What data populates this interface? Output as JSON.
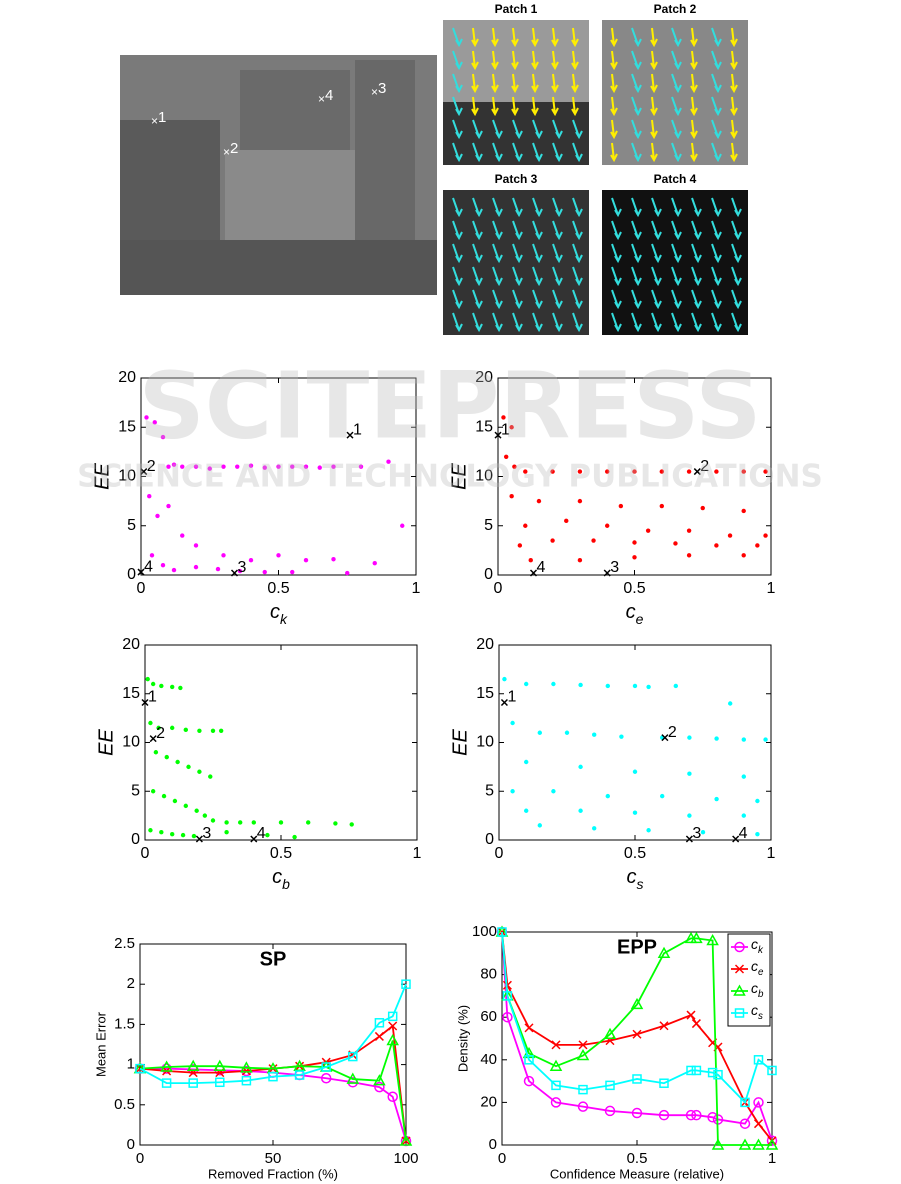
{
  "image_panel": {
    "points": [
      "1",
      "2",
      "3",
      "4"
    ],
    "patch_titles": [
      "Patch 1",
      "Patch 2",
      "Patch 3",
      "Patch 4"
    ]
  },
  "watermark": {
    "title": "SCITEPRESS",
    "subtitle": "SCIENCE AND TECHNOLOGY PUBLICATIONS"
  },
  "chart_data": [
    {
      "type": "scatter",
      "xlabel": {
        "text": "c",
        "sub": "k"
      },
      "ylabel": "EE",
      "color": "#ff00ff",
      "xlim": [
        0,
        1
      ],
      "xticks": [
        0,
        0.5,
        1
      ],
      "ylim": [
        0,
        20
      ],
      "yticks": [
        0,
        5,
        10,
        15,
        20
      ],
      "x": [
        0.02,
        0.05,
        0.08,
        0.1,
        0.12,
        0.15,
        0.2,
        0.25,
        0.3,
        0.35,
        0.4,
        0.45,
        0.5,
        0.55,
        0.6,
        0.65,
        0.7,
        0.8,
        0.9,
        0.95,
        0.03,
        0.06,
        0.1,
        0.15,
        0.2,
        0.3,
        0.4,
        0.5,
        0.6,
        0.7,
        0.85,
        0.04,
        0.08,
        0.12,
        0.2,
        0.28,
        0.36,
        0.45,
        0.55,
        0.75
      ],
      "values": [
        16,
        15.5,
        14,
        11,
        11.2,
        11,
        11,
        10.8,
        11,
        11,
        11.1,
        10.9,
        11,
        11,
        11,
        10.9,
        11,
        11,
        11.5,
        5,
        8,
        6,
        7,
        4,
        3,
        2,
        1.5,
        2,
        1.5,
        1.6,
        1.2,
        2,
        1,
        0.5,
        0.8,
        0.6,
        0.4,
        0.3,
        0.3,
        0.2
      ],
      "annotations": [
        {
          "label": "1",
          "x": 0.76,
          "y": 14.2
        },
        {
          "label": "2",
          "x": 0.01,
          "y": 10.5
        },
        {
          "label": "3",
          "x": 0.34,
          "y": 0.2
        },
        {
          "label": "4",
          "x": 0.0,
          "y": 0.3
        }
      ]
    },
    {
      "type": "scatter",
      "xlabel": {
        "text": "c",
        "sub": "e"
      },
      "ylabel": "EE",
      "color": "#ff0000",
      "xlim": [
        0,
        1
      ],
      "xticks": [
        0,
        0.5,
        1
      ],
      "ylim": [
        0,
        20
      ],
      "yticks": [
        0,
        5,
        10,
        15,
        20
      ],
      "x": [
        0.02,
        0.05,
        0.03,
        0.06,
        0.1,
        0.2,
        0.3,
        0.4,
        0.5,
        0.6,
        0.7,
        0.8,
        0.9,
        0.98,
        0.05,
        0.15,
        0.3,
        0.45,
        0.6,
        0.75,
        0.9,
        0.1,
        0.25,
        0.4,
        0.55,
        0.7,
        0.85,
        0.98,
        0.08,
        0.2,
        0.35,
        0.5,
        0.65,
        0.8,
        0.95,
        0.12,
        0.3,
        0.5,
        0.7,
        0.9
      ],
      "values": [
        16,
        15,
        12,
        11,
        10.5,
        10.5,
        10.5,
        10.5,
        10.5,
        10.5,
        10.5,
        10.5,
        10.5,
        10.5,
        8,
        7.5,
        7.5,
        7,
        7,
        6.8,
        6.5,
        5,
        5.5,
        5,
        4.5,
        4.5,
        4,
        4,
        3,
        3.5,
        3.5,
        3.3,
        3.2,
        3,
        3,
        1.5,
        1.5,
        1.8,
        2,
        2
      ],
      "annotations": [
        {
          "label": "1",
          "x": 0.0,
          "y": 14.2
        },
        {
          "label": "2",
          "x": 0.73,
          "y": 10.5
        },
        {
          "label": "3",
          "x": 0.4,
          "y": 0.2
        },
        {
          "label": "4",
          "x": 0.13,
          "y": 0.2
        }
      ]
    },
    {
      "type": "scatter",
      "xlabel": {
        "text": "c",
        "sub": "b"
      },
      "ylabel": "EE",
      "color": "#00ff00",
      "xlim": [
        0,
        1
      ],
      "xticks": [
        0,
        0.5,
        1
      ],
      "ylim": [
        0,
        20
      ],
      "yticks": [
        0,
        5,
        10,
        15,
        20
      ],
      "x": [
        0.01,
        0.03,
        0.06,
        0.1,
        0.13,
        0.02,
        0.05,
        0.1,
        0.15,
        0.2,
        0.25,
        0.28,
        0.04,
        0.08,
        0.12,
        0.16,
        0.2,
        0.24,
        0.03,
        0.07,
        0.11,
        0.15,
        0.19,
        0.22,
        0.25,
        0.3,
        0.35,
        0.4,
        0.5,
        0.6,
        0.7,
        0.76,
        0.02,
        0.06,
        0.1,
        0.14,
        0.18,
        0.3,
        0.45,
        0.55
      ],
      "values": [
        16.5,
        16,
        15.8,
        15.7,
        15.6,
        12,
        11.5,
        11.5,
        11.3,
        11.2,
        11.2,
        11.2,
        9,
        8.5,
        8,
        7.5,
        7,
        6.5,
        5,
        4.5,
        4,
        3.5,
        3,
        2.5,
        2,
        1.8,
        1.8,
        1.8,
        1.8,
        1.8,
        1.7,
        1.6,
        1,
        0.8,
        0.6,
        0.5,
        0.4,
        0.8,
        0.5,
        0.3
      ],
      "annotations": [
        {
          "label": "1",
          "x": 0.0,
          "y": 14.1
        },
        {
          "label": "2",
          "x": 0.03,
          "y": 10.4
        },
        {
          "label": "3",
          "x": 0.2,
          "y": 0.1
        },
        {
          "label": "4",
          "x": 0.4,
          "y": 0.1
        }
      ]
    },
    {
      "type": "scatter",
      "xlabel": {
        "text": "c",
        "sub": "s"
      },
      "ylabel": "EE",
      "color": "#00ffff",
      "xlim": [
        0,
        1
      ],
      "xticks": [
        0,
        0.5,
        1
      ],
      "ylim": [
        0,
        20
      ],
      "yticks": [
        0,
        5,
        10,
        15,
        20
      ],
      "x": [
        0.02,
        0.1,
        0.2,
        0.3,
        0.4,
        0.5,
        0.55,
        0.05,
        0.15,
        0.25,
        0.35,
        0.45,
        0.6,
        0.7,
        0.8,
        0.9,
        0.98,
        0.1,
        0.3,
        0.5,
        0.7,
        0.9,
        0.05,
        0.2,
        0.4,
        0.6,
        0.8,
        0.95,
        0.1,
        0.3,
        0.5,
        0.7,
        0.9,
        0.15,
        0.35,
        0.55,
        0.75,
        0.95,
        0.65,
        0.85
      ],
      "values": [
        16.5,
        16,
        16,
        15.9,
        15.8,
        15.8,
        15.7,
        12,
        11,
        11,
        10.8,
        10.6,
        10.5,
        10.5,
        10.4,
        10.3,
        10.3,
        8,
        7.5,
        7,
        6.8,
        6.5,
        5,
        5,
        4.5,
        4.5,
        4.2,
        4,
        3,
        3,
        2.8,
        2.5,
        2.5,
        1.5,
        1.2,
        1,
        0.8,
        0.6,
        15.8,
        14
      ],
      "annotations": [
        {
          "label": "1",
          "x": 0.02,
          "y": 14.1
        },
        {
          "label": "2",
          "x": 0.61,
          "y": 10.5
        },
        {
          "label": "3",
          "x": 0.7,
          "y": 0.1
        },
        {
          "label": "4",
          "x": 0.87,
          "y": 0.1
        }
      ]
    },
    {
      "type": "line",
      "title": "SP",
      "xlabel": "Removed Fraction (%)",
      "ylabel": "Mean Error",
      "xlim": [
        0,
        100
      ],
      "xticks": [
        0,
        50,
        100
      ],
      "ylim": [
        0,
        2.5
      ],
      "yticks": [
        0,
        0.5,
        1,
        1.5,
        2,
        2.5
      ],
      "x": [
        0,
        10,
        20,
        30,
        40,
        50,
        60,
        70,
        80,
        90,
        95,
        100
      ],
      "series": [
        {
          "color": "#ff00ff",
          "marker": "circle",
          "values": [
            0.95,
            0.95,
            0.94,
            0.93,
            0.92,
            0.9,
            0.87,
            0.83,
            0.78,
            0.72,
            0.6,
            0.05
          ]
        },
        {
          "color": "#ff0000",
          "marker": "x",
          "values": [
            0.95,
            0.92,
            0.9,
            0.9,
            0.92,
            0.95,
            0.98,
            1.03,
            1.12,
            1.35,
            1.48,
            0.05
          ]
        },
        {
          "color": "#00ff00",
          "marker": "triangle",
          "values": [
            0.95,
            0.97,
            0.98,
            0.98,
            0.96,
            0.95,
            0.98,
            0.97,
            0.82,
            0.8,
            1.3,
            0.05
          ]
        },
        {
          "color": "#00ffff",
          "marker": "square",
          "values": [
            0.95,
            0.77,
            0.77,
            0.78,
            0.8,
            0.85,
            0.87,
            0.97,
            1.1,
            1.52,
            1.6,
            2.0
          ]
        }
      ]
    },
    {
      "type": "line",
      "title": "EPP",
      "xlabel": "Confidence Measure (relative)",
      "ylabel": "Density (%)",
      "xlim": [
        0,
        1
      ],
      "xticks": [
        0,
        0.5,
        1
      ],
      "ylim": [
        0,
        100
      ],
      "yticks": [
        0,
        20,
        40,
        60,
        80,
        100
      ],
      "legend": "upper right",
      "x": [
        0,
        0.02,
        0.1,
        0.2,
        0.3,
        0.4,
        0.5,
        0.6,
        0.7,
        0.72,
        0.78,
        0.8,
        0.9,
        0.95,
        1
      ],
      "series": [
        {
          "name": {
            "text": "c",
            "sub": "k"
          },
          "color": "#ff00ff",
          "marker": "circle",
          "values": [
            100,
            60,
            30,
            20,
            18,
            16,
            15,
            14,
            14,
            14,
            13,
            12,
            10,
            20,
            2
          ]
        },
        {
          "name": {
            "text": "c",
            "sub": "e"
          },
          "color": "#ff0000",
          "marker": "x",
          "values": [
            100,
            75,
            55,
            47,
            47,
            49,
            52,
            56,
            61,
            57,
            48,
            46,
            20,
            10,
            2
          ]
        },
        {
          "name": {
            "text": "c",
            "sub": "b"
          },
          "color": "#00ff00",
          "marker": "triangle",
          "values": [
            100,
            70,
            43,
            37,
            42,
            52,
            66,
            90,
            97,
            97,
            96,
            0,
            0,
            0,
            0
          ]
        },
        {
          "name": {
            "text": "c",
            "sub": "s"
          },
          "color": "#00ffff",
          "marker": "square",
          "values": [
            100,
            70,
            40,
            28,
            26,
            28,
            31,
            29,
            35,
            35,
            34,
            33,
            20,
            40,
            35
          ]
        }
      ]
    }
  ]
}
